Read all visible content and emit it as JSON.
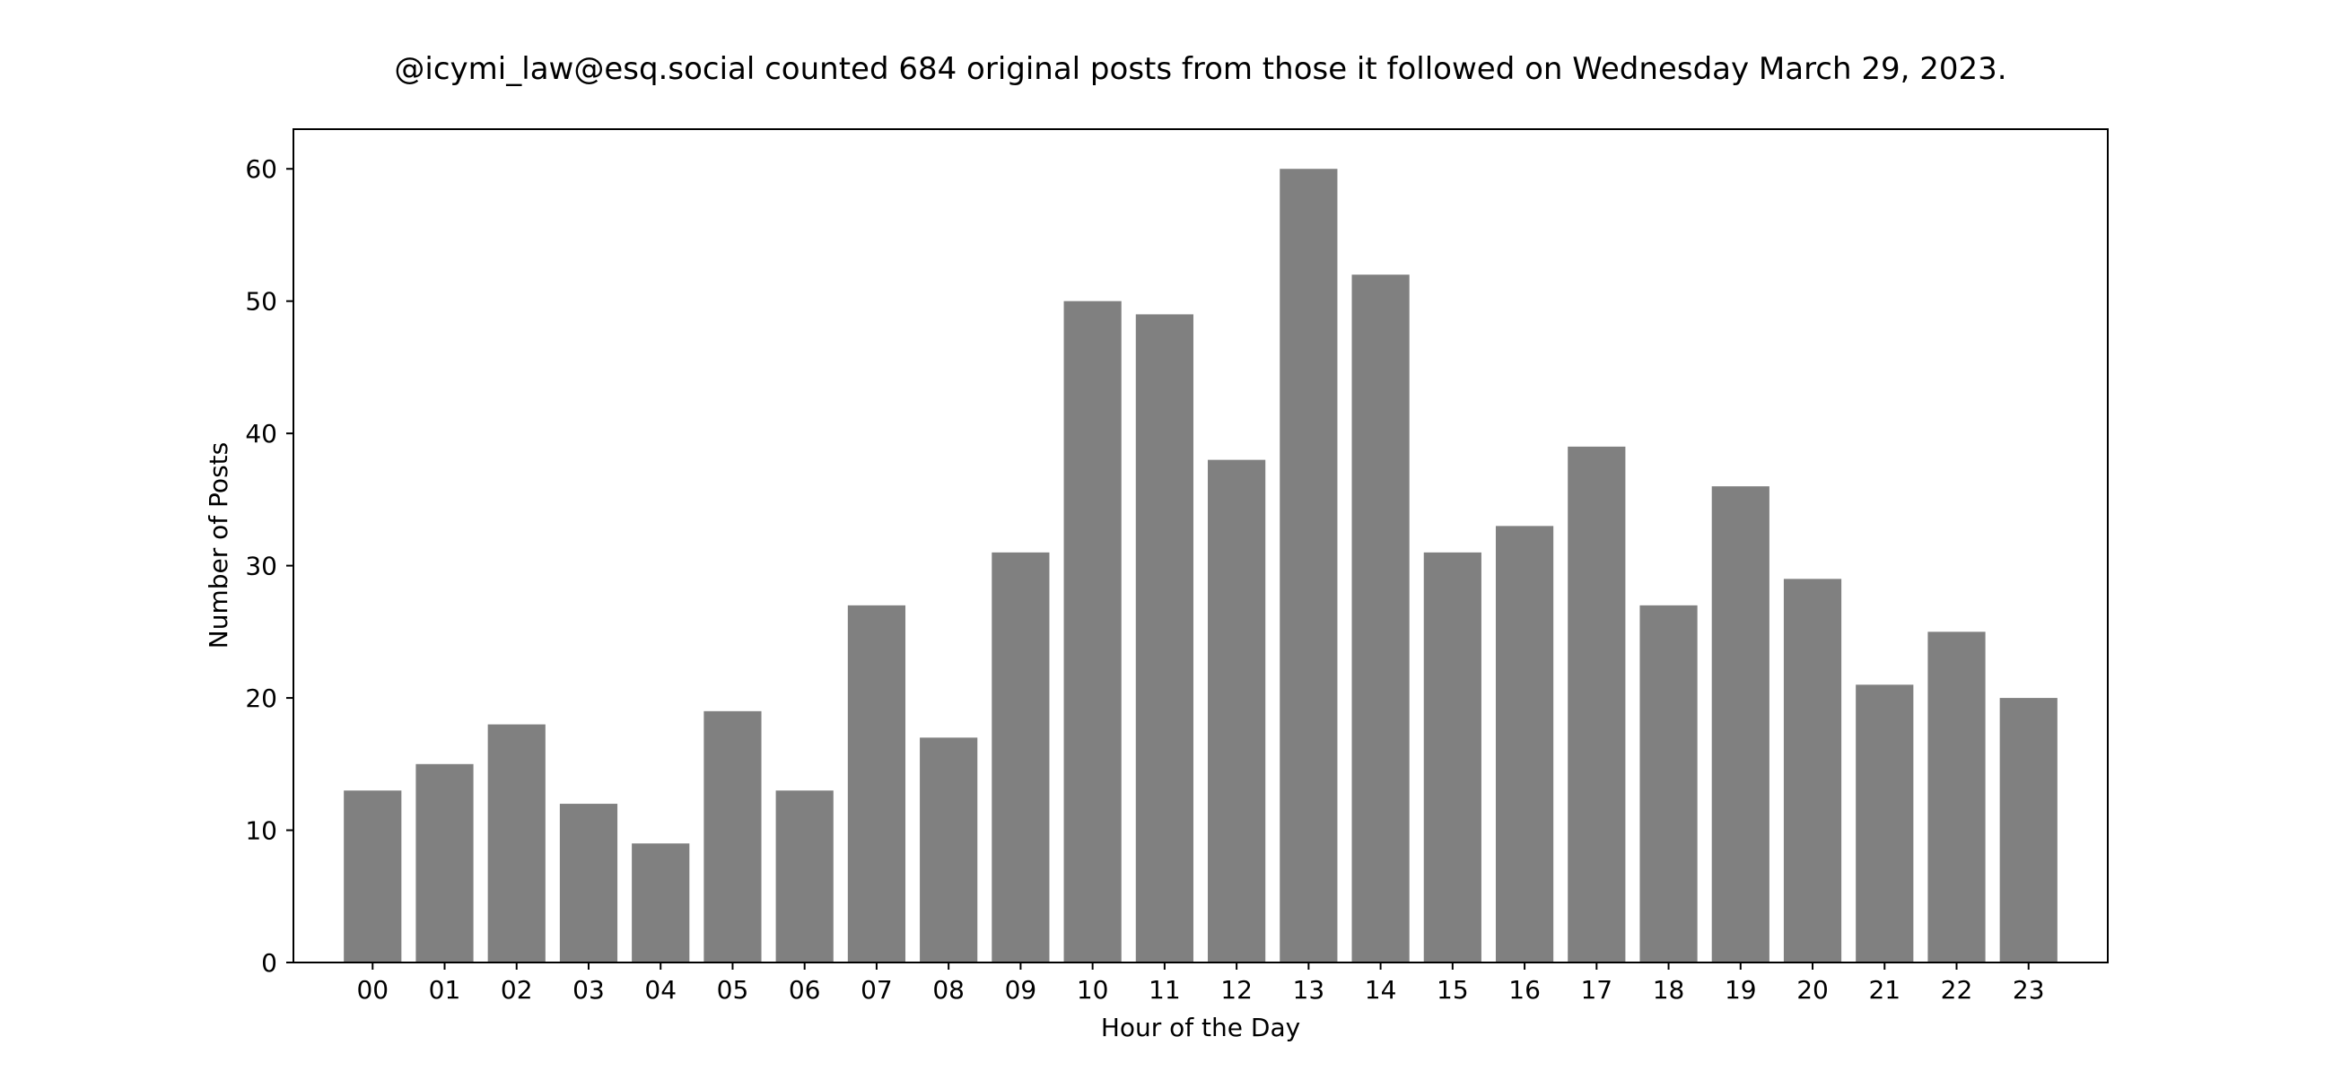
{
  "chart_data": {
    "type": "bar",
    "title": "@icymi_law@esq.social counted 684 original posts from those it followed on Wednesday March 29, 2023.",
    "xlabel": "Hour of the Day",
    "ylabel": "Number of Posts",
    "categories": [
      "00",
      "01",
      "02",
      "03",
      "04",
      "05",
      "06",
      "07",
      "08",
      "09",
      "10",
      "11",
      "12",
      "13",
      "14",
      "15",
      "16",
      "17",
      "18",
      "19",
      "20",
      "21",
      "22",
      "23"
    ],
    "values": [
      13,
      15,
      18,
      12,
      9,
      19,
      13,
      27,
      17,
      31,
      50,
      49,
      38,
      60,
      52,
      31,
      33,
      39,
      27,
      36,
      29,
      21,
      25,
      20
    ],
    "ylim": [
      0,
      63
    ],
    "yticks": [
      0,
      10,
      20,
      30,
      40,
      50,
      60
    ],
    "grid": false,
    "legend": "none",
    "colors": {
      "bar": "#808080",
      "axis": "#000000",
      "background": "#ffffff"
    }
  }
}
